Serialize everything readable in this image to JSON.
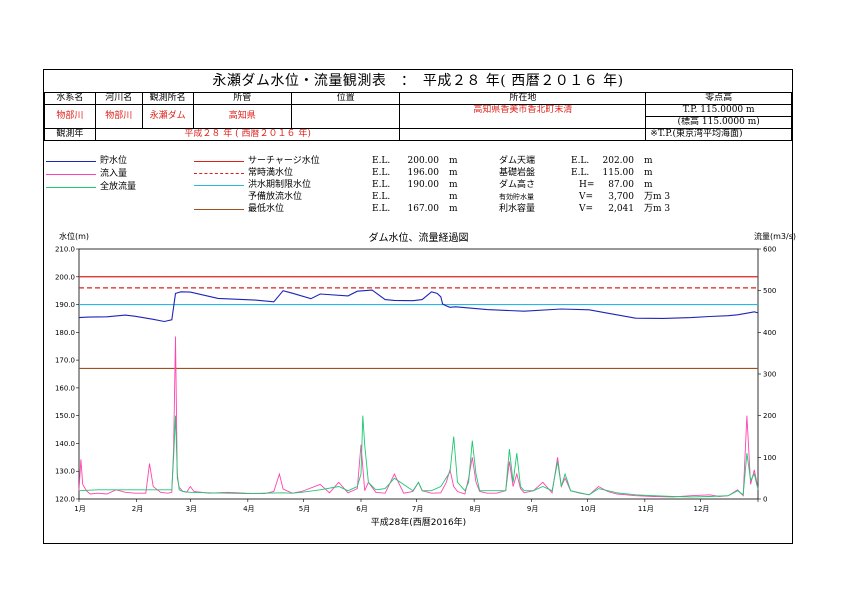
{
  "title": "永瀬ダム水位・流量観測表　：　平成２８ 年( 西暦２０１６ 年)",
  "info": {
    "headers": [
      "水系名",
      "河川名",
      "観測所名",
      "所管",
      "位置",
      "所在地",
      "零点高"
    ],
    "values": [
      "物部川",
      "物部川",
      "永瀬ダム",
      "高知県",
      "",
      "高知県香美市香北町末清",
      "T.P. 115.0000 m"
    ],
    "zero_alt": "(標高 115.0000 m)",
    "obs_year_label": "観測年",
    "obs_year_value": "平成２８ 年 ( 西暦２０１６ 年)",
    "datum_note": "※T.P.(東京湾平均海面)"
  },
  "legend_series": [
    {
      "label": "貯水位",
      "color": "#1f24b8"
    },
    {
      "label": "流入量",
      "color": "#ff44b0"
    },
    {
      "label": "全放流量",
      "color": "#1ec870"
    }
  ],
  "legend_levels": [
    {
      "label": "サーチャージ水位",
      "color": "#e0201a",
      "dash": false,
      "el_label": "E.L.",
      "value": "200.00",
      "unit": "m"
    },
    {
      "label": "常時満水位",
      "color": "#e0201a",
      "dash": true,
      "el_label": "E.L.",
      "value": "196.00",
      "unit": "m"
    },
    {
      "label": "洪水期制限水位",
      "color": "#2bb6e8",
      "dash": false,
      "el_label": "E.L.",
      "value": "190.00",
      "unit": "m"
    },
    {
      "label": "予備放流水位",
      "color": null,
      "dash": false,
      "el_label": "E.L.",
      "value": "",
      "unit": "m"
    },
    {
      "label": "最低水位",
      "color": "#a0521e",
      "dash": false,
      "el_label": "E.L.",
      "value": "167.00",
      "unit": "m"
    }
  ],
  "specs": [
    {
      "label": "ダム天端",
      "key": "E.L.",
      "value": "202.00",
      "unit": "m"
    },
    {
      "label": "基礎岩盤",
      "key": "E.L.",
      "value": "115.00",
      "unit": "m"
    },
    {
      "label": "ダム高さ",
      "key": "H=",
      "value": "87.00",
      "unit": "m"
    },
    {
      "label": "有効貯水量",
      "key": "V=",
      "value": "3,700",
      "unit": "万m 3"
    },
    {
      "label": "利水容量",
      "key": "V=",
      "value": "2,041",
      "unit": "万m 3"
    }
  ],
  "chart_data": {
    "type": "line",
    "title": "ダム水位、流量経過図",
    "ylabel_left": "水位(m)",
    "ylabel_right": "流量(m3/s)",
    "xlabel": "平成28年(西暦2016年)",
    "ylim_left": [
      120,
      210
    ],
    "ylim_right": [
      0,
      600
    ],
    "yticks_left": [
      "120.0",
      "130.0",
      "140.0",
      "150.0",
      "160.0",
      "170.0",
      "180.0",
      "190.0",
      "200.0",
      "210.0"
    ],
    "yticks_right": [
      "0",
      "100",
      "200",
      "300",
      "400",
      "500",
      "600"
    ],
    "xlim_days": [
      0,
      366
    ],
    "x_month_labels": [
      "1月",
      "2月",
      "3月",
      "4月",
      "5月",
      "6月",
      "7月",
      "8月",
      "9月",
      "10月",
      "11月",
      "12月"
    ],
    "reference_levels": [
      {
        "name": "サーチャージ水位",
        "value": 200.0,
        "color": "#e0201a",
        "dash": false
      },
      {
        "name": "常時満水位",
        "value": 196.0,
        "color": "#e0201a",
        "dash": true
      },
      {
        "name": "洪水期制限水位",
        "value": 190.0,
        "color": "#2bb6e8",
        "dash": false
      },
      {
        "name": "最低水位",
        "value": 167.0,
        "color": "#a0521e",
        "dash": false
      }
    ],
    "series": [
      {
        "name": "貯水位",
        "axis": "left",
        "color": "#1f24b8",
        "x": [
          0,
          5,
          15,
          25,
          30,
          40,
          46,
          50,
          52,
          55,
          60,
          75,
          95,
          105,
          110,
          115,
          125,
          130,
          145,
          150,
          158,
          165,
          170,
          180,
          185,
          190,
          193,
          195,
          196,
          198,
          200,
          203,
          210,
          220,
          240,
          260,
          275,
          285,
          300,
          315,
          330,
          340,
          350,
          355,
          360,
          364,
          366
        ],
        "y": [
          185.3,
          185.5,
          185.6,
          186.2,
          185.8,
          184.7,
          183.9,
          184.5,
          194.0,
          194.6,
          194.5,
          192.2,
          191.6,
          191.0,
          195.0,
          194.1,
          192.1,
          193.8,
          193.1,
          194.8,
          195.2,
          191.8,
          191.5,
          191.4,
          191.8,
          194.6,
          194.0,
          192.8,
          190.2,
          189.5,
          189.0,
          189.2,
          188.8,
          188.2,
          187.6,
          188.4,
          188.1,
          186.9,
          185.1,
          185.0,
          185.3,
          185.7,
          186.0,
          186.3,
          186.9,
          187.4,
          187.0
        ]
      },
      {
        "name": "流入量",
        "axis": "right",
        "color": "#ff44b0",
        "x": [
          0,
          1,
          2,
          4,
          6,
          10,
          15,
          20,
          25,
          30,
          36,
          38,
          40,
          44,
          48,
          50,
          51,
          52,
          53,
          54,
          56,
          58,
          60,
          62,
          66,
          70,
          80,
          90,
          100,
          105,
          108,
          110,
          115,
          120,
          130,
          135,
          140,
          145,
          150,
          152,
          154,
          156,
          160,
          165,
          170,
          175,
          180,
          183,
          185,
          190,
          195,
          198,
          200,
          202,
          204,
          208,
          210,
          212,
          214,
          216,
          220,
          225,
          230,
          232,
          234,
          236,
          238,
          240,
          245,
          250,
          255,
          258,
          260,
          262,
          265,
          270,
          275,
          280,
          285,
          290,
          295,
          300,
          310,
          320,
          330,
          340,
          345,
          350,
          355,
          358,
          360,
          362,
          364,
          366
        ],
        "x_note": "day of year",
        "y": [
          20,
          95,
          35,
          20,
          12,
          14,
          12,
          22,
          16,
          14,
          14,
          85,
          30,
          16,
          14,
          16,
          120,
          390,
          50,
          28,
          18,
          16,
          30,
          18,
          16,
          14,
          16,
          14,
          13,
          18,
          60,
          24,
          14,
          18,
          35,
          15,
          40,
          15,
          25,
          130,
          20,
          40,
          16,
          14,
          60,
          14,
          18,
          40,
          20,
          14,
          15,
          40,
          70,
          30,
          18,
          12,
          50,
          100,
          40,
          18,
          14,
          14,
          20,
          90,
          30,
          60,
          25,
          15,
          20,
          40,
          15,
          100,
          30,
          50,
          20,
          14,
          10,
          30,
          18,
          12,
          10,
          8,
          6,
          5,
          8,
          10,
          6,
          8,
          22,
          8,
          200,
          35,
          70,
          25
        ]
      },
      {
        "name": "全放流量",
        "axis": "right",
        "color": "#1ec870",
        "x": [
          0,
          10,
          20,
          30,
          40,
          50,
          51,
          52,
          53,
          54,
          56,
          60,
          70,
          80,
          90,
          100,
          110,
          115,
          120,
          130,
          140,
          145,
          150,
          152,
          153,
          154,
          156,
          160,
          165,
          170,
          180,
          183,
          185,
          190,
          195,
          200,
          202,
          204,
          208,
          210,
          212,
          214,
          216,
          220,
          225,
          230,
          232,
          234,
          236,
          238,
          240,
          245,
          250,
          255,
          258,
          260,
          262,
          265,
          270,
          275,
          280,
          290,
          300,
          310,
          320,
          330,
          340,
          350,
          355,
          358,
          360,
          362,
          364,
          366
        ],
        "y": [
          20,
          22,
          22,
          22,
          22,
          22,
          100,
          200,
          60,
          22,
          18,
          16,
          15,
          14,
          13,
          14,
          15,
          14,
          16,
          22,
          30,
          20,
          30,
          60,
          200,
          130,
          40,
          22,
          25,
          50,
          20,
          40,
          20,
          20,
          30,
          65,
          150,
          40,
          20,
          40,
          140,
          60,
          20,
          20,
          20,
          20,
          120,
          40,
          110,
          30,
          20,
          20,
          30,
          20,
          90,
          30,
          60,
          20,
          15,
          10,
          25,
          15,
          10,
          8,
          6,
          5,
          6,
          8,
          20,
          10,
          110,
          45,
          60,
          22
        ]
      }
    ]
  }
}
